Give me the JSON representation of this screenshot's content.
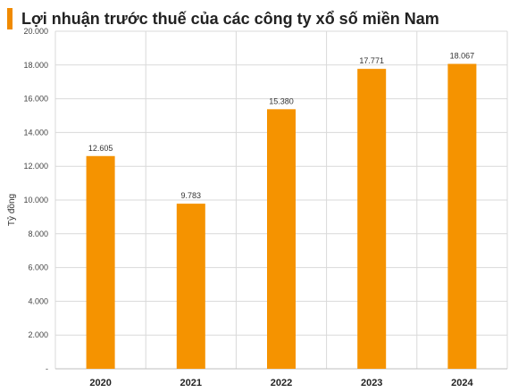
{
  "colors": {
    "accent": "#F08A00",
    "bar": "#F59300",
    "grid": "#D9D9D9"
  },
  "chart_data": {
    "type": "bar",
    "title": "Lợi nhuận trước thuế của các công ty xổ số miền Nam",
    "xlabel": "",
    "ylabel": "Tỷ đồng",
    "categories": [
      "2020",
      "2021",
      "2022",
      "2023",
      "2024"
    ],
    "values": [
      12605,
      9783,
      15380,
      17771,
      18067
    ],
    "data_labels": [
      "12.605",
      "9.783",
      "15.380",
      "17.771",
      "18.067"
    ],
    "ylim": [
      0,
      20000
    ],
    "y_ticks": [
      0,
      2000,
      4000,
      6000,
      8000,
      10000,
      12000,
      14000,
      16000,
      18000,
      20000
    ],
    "y_tick_labels": [
      "-",
      "2.000",
      "4.000",
      "6.000",
      "8.000",
      "10.000",
      "12.000",
      "14.000",
      "16.000",
      "18.000",
      "20.000"
    ],
    "grid": true,
    "legend": "none"
  }
}
